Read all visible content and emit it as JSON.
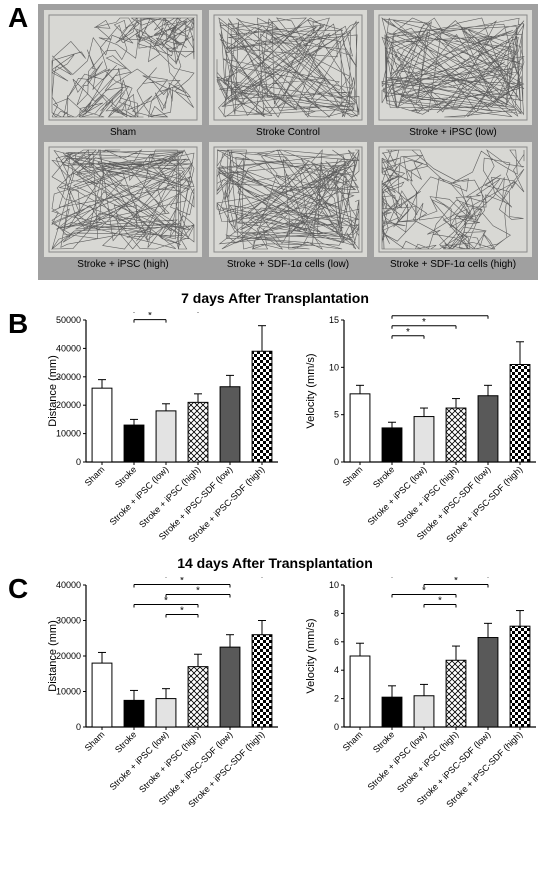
{
  "panelA": {
    "label": "A",
    "background": "#a0a0a0",
    "arena_bg": "#d8d8d4",
    "trace_color": "#4a4a4a",
    "cells": [
      {
        "caption": "Sham",
        "density": "full"
      },
      {
        "caption": "Stroke Control",
        "density": "perimeter"
      },
      {
        "caption": "Stroke + iPSC (low)",
        "density": "perimeter"
      },
      {
        "caption": "Stroke + iPSC (high)",
        "density": "mixed"
      },
      {
        "caption": "Stroke + SDF-1α cells (low)",
        "density": "mixed"
      },
      {
        "caption": "Stroke + SDF-1α cells (high)",
        "density": "full"
      }
    ]
  },
  "charts": {
    "categories": [
      "Sham",
      "Stroke",
      "Stroke + iPSC (low)",
      "Stroke + iPSC (high)",
      "Stroke + iPSC-SDF (low)",
      "Stroke + iPSC-SDF (high)"
    ],
    "bar_fills": [
      "#ffffff",
      "#000000",
      "#e3e3e3",
      "crosshatch",
      "#595959",
      "checker"
    ],
    "bar_outline": "#000000",
    "B": {
      "label": "B",
      "title": "7 days After Transplantation",
      "distance": {
        "ylabel": "Distance (mm)",
        "ymax": 50000,
        "ytick_step": 10000,
        "values": [
          26000,
          13000,
          18000,
          21000,
          26500,
          39000
        ],
        "errors": [
          3000,
          2000,
          2500,
          3000,
          4000,
          9000
        ],
        "sig_from_idx": 1,
        "sig_to": [
          2,
          3,
          4,
          5
        ]
      },
      "velocity": {
        "ylabel": "Velocity (mm/s)",
        "ymax": 15,
        "ytick_step": 5,
        "values": [
          7.2,
          3.6,
          4.8,
          5.7,
          7.0,
          10.3
        ],
        "errors": [
          0.9,
          0.6,
          0.9,
          1.0,
          1.1,
          2.4
        ],
        "sig_from_idx": 1,
        "sig_to": [
          2,
          3,
          4,
          5
        ]
      }
    },
    "C": {
      "label": "C",
      "title": "14 days After Transplantation",
      "distance": {
        "ylabel": "Distance (mm)",
        "ymax": 40000,
        "ytick_step": 10000,
        "values": [
          18000,
          7500,
          8000,
          17000,
          22500,
          26000
        ],
        "errors": [
          3000,
          2800,
          2800,
          3500,
          3500,
          4000
        ],
        "sig_from_idx": 1,
        "sig_to": [
          3,
          4,
          5
        ],
        "extra_sig": [
          [
            2,
            3
          ],
          [
            2,
            4
          ],
          [
            2,
            5
          ]
        ]
      },
      "velocity": {
        "ylabel": "Velocity (mm/s)",
        "ymax": 10,
        "ytick_step": 2,
        "values": [
          5.0,
          2.1,
          2.2,
          4.7,
          6.3,
          7.1
        ],
        "errors": [
          0.9,
          0.8,
          0.8,
          1.0,
          1.0,
          1.1
        ],
        "sig_from_idx": 1,
        "sig_to": [
          3,
          4,
          5
        ],
        "extra_sig": [
          [
            2,
            3
          ],
          [
            2,
            4
          ],
          [
            2,
            5
          ]
        ]
      }
    }
  },
  "style": {
    "label_fontsize": 28,
    "title_fontsize": 14,
    "axis_fontsize": 9,
    "axis_title_fontsize": 11,
    "sig_fontsize": 10,
    "sig_marker": "*"
  }
}
